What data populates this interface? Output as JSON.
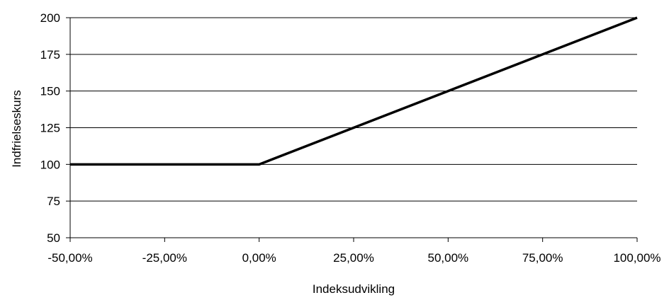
{
  "chart_data": {
    "type": "line",
    "title": "",
    "xlabel": "Indeksudvikling",
    "ylabel": "Indfrielseskurs",
    "x_tick_labels": [
      "-50,00%",
      "-25,00%",
      "0,00%",
      "25,00%",
      "50,00%",
      "75,00%",
      "100,00%"
    ],
    "y_tick_labels": [
      "50",
      "75",
      "100",
      "125",
      "150",
      "175",
      "200"
    ],
    "x_ticks": [
      -50,
      -25,
      0,
      25,
      50,
      75,
      100
    ],
    "y_ticks": [
      50,
      75,
      100,
      125,
      150,
      175,
      200
    ],
    "xlim": [
      -50,
      100
    ],
    "ylim": [
      50,
      200
    ],
    "grid": "horizontal",
    "legend": "none",
    "series": [
      {
        "x": [
          -50,
          0,
          100
        ],
        "y": [
          100,
          100,
          200
        ],
        "color": "#000000"
      }
    ]
  }
}
